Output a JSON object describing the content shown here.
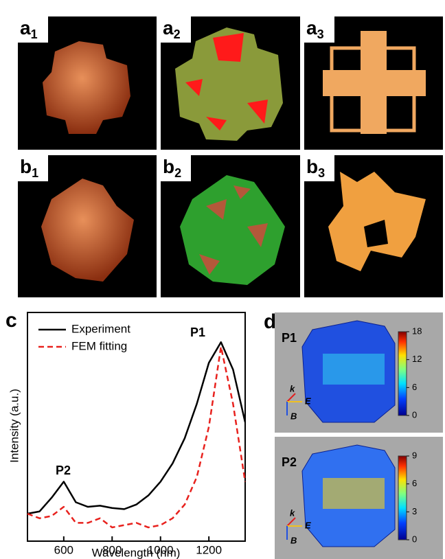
{
  "panels": [
    {
      "letter": "a",
      "sub": "1"
    },
    {
      "letter": "a",
      "sub": "2"
    },
    {
      "letter": "a",
      "sub": "3"
    },
    {
      "letter": "b",
      "sub": "1"
    },
    {
      "letter": "b",
      "sub": "2"
    },
    {
      "letter": "b",
      "sub": "3"
    }
  ],
  "chart_data": {
    "type": "line",
    "panel_label": "c",
    "x_label": "Wavelength (nm)",
    "y_label": "Intensity (a.u.)",
    "x": [
      450,
      500,
      550,
      600,
      650,
      700,
      750,
      800,
      850,
      900,
      950,
      1000,
      1050,
      1100,
      1150,
      1200,
      1250,
      1300,
      1350
    ],
    "series": [
      {
        "name": "Experiment",
        "color": "#000000",
        "dash": false,
        "values": [
          0.12,
          0.13,
          0.19,
          0.26,
          0.17,
          0.15,
          0.155,
          0.145,
          0.14,
          0.16,
          0.2,
          0.26,
          0.34,
          0.45,
          0.6,
          0.78,
          0.87,
          0.75,
          0.52
        ]
      },
      {
        "name": "FEM fitting",
        "color": "#e8211d",
        "dash": true,
        "values": [
          0.12,
          0.1,
          0.11,
          0.15,
          0.08,
          0.08,
          0.1,
          0.06,
          0.07,
          0.08,
          0.06,
          0.07,
          0.1,
          0.16,
          0.28,
          0.5,
          0.85,
          0.6,
          0.26
        ]
      }
    ],
    "xlim": [
      450,
      1350
    ],
    "ylim": [
      0,
      1
    ],
    "xticks": [
      600,
      800,
      1000,
      1200
    ],
    "annotations": [
      "P1",
      "P2"
    ]
  },
  "field_panel_label": "d",
  "field_maps": [
    {
      "label": "P1",
      "clim": [
        0,
        18
      ],
      "ticks": [
        0,
        6,
        12,
        18
      ],
      "axes": [
        "k",
        "E",
        "B"
      ]
    },
    {
      "label": "P2",
      "clim": [
        0,
        9
      ],
      "ticks": [
        0,
        3,
        6,
        9
      ],
      "axes": [
        "k",
        "E",
        "B"
      ]
    }
  ]
}
